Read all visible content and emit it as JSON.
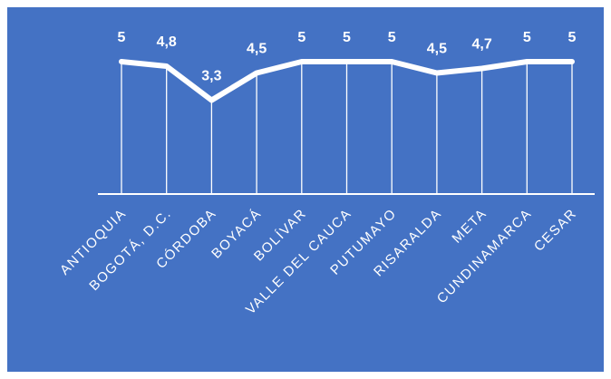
{
  "colors": {
    "background": "#4472c4",
    "line": "#ffffff",
    "labels": "#ffffff"
  },
  "chart_data": {
    "type": "line",
    "categories": [
      "ANTIOQUIA",
      "BOGOTÁ, D.C.",
      "CÓRDOBA",
      "BOYACÁ",
      "BOLÍVAR",
      "VALLE DEL CAUCA",
      "PUTUMAYO",
      "RISARALDA",
      "META",
      "CUNDINAMARCA",
      "CESAR"
    ],
    "values": [
      5,
      4.8,
      3.3,
      4.5,
      5,
      5,
      5,
      4.5,
      4.7,
      5,
      5
    ],
    "value_labels": [
      "5",
      "4,8",
      "3,3",
      "4,5",
      "5",
      "5",
      "5",
      "4,5",
      "4,7",
      "5",
      "5"
    ],
    "grid": false,
    "legend": "none",
    "drop_lines": true
  }
}
